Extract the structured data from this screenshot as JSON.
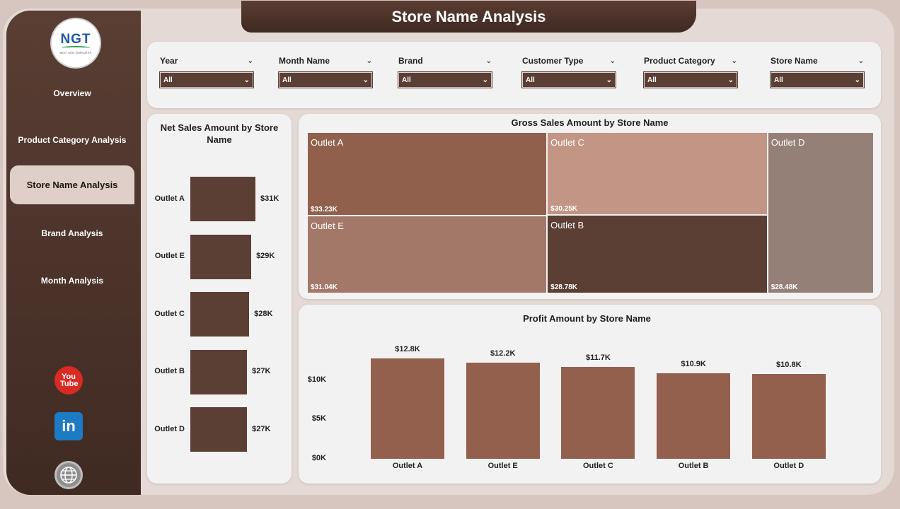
{
  "header": {
    "title": "Store Name Analysis"
  },
  "logo": {
    "text": "NGT",
    "subtext": "NEXT GEN TEMPLATES"
  },
  "sidebar": {
    "items": [
      {
        "label": "Overview",
        "active": false
      },
      {
        "label": "Product Category Analysis",
        "active": false
      },
      {
        "label": "Store Name Analysis",
        "active": true
      },
      {
        "label": "Brand Analysis",
        "active": false
      },
      {
        "label": "Month Analysis",
        "active": false
      }
    ],
    "social": {
      "youtube": "You Tube",
      "linkedin": "in",
      "web_icon": "globe-www-icon"
    }
  },
  "filters": [
    {
      "label": "Year",
      "value": "All"
    },
    {
      "label": "Month Name",
      "value": "All"
    },
    {
      "label": "Brand",
      "value": "All"
    },
    {
      "label": "Customer Type",
      "value": "All"
    },
    {
      "label": "Product Category",
      "value": "All"
    },
    {
      "label": "Store Name",
      "value": "All"
    }
  ],
  "colors": {
    "brand_dark": "#5b3e34",
    "bar_light": "#93604d"
  },
  "chart_data": [
    {
      "type": "bar",
      "orientation": "horizontal",
      "title": "Net Sales Amount by Store Name",
      "categories": [
        "Outlet A",
        "Outlet E",
        "Outlet C",
        "Outlet B",
        "Outlet D"
      ],
      "values": [
        31,
        29,
        28,
        27,
        27
      ],
      "value_labels": [
        "$31K",
        "$29K",
        "$28K",
        "$27K",
        "$27K"
      ],
      "unit": "K"
    },
    {
      "type": "treemap",
      "title": "Gross Sales Amount by Store Name",
      "categories": [
        "Outlet A",
        "Outlet C",
        "Outlet E",
        "Outlet B",
        "Outlet D"
      ],
      "values": [
        33.23,
        30.25,
        31.04,
        28.78,
        28.48
      ],
      "value_labels": [
        "$33.23K",
        "$30.25K",
        "$31.04K",
        "$28.78K",
        "$28.48K"
      ],
      "colors": [
        "#91604c",
        "#c29584",
        "#a47868",
        "#5b3e34",
        "#958078"
      ]
    },
    {
      "type": "bar",
      "title": "Profit Amount by Store Name",
      "categories": [
        "Outlet A",
        "Outlet E",
        "Outlet C",
        "Outlet B",
        "Outlet D"
      ],
      "values": [
        12.8,
        12.2,
        11.7,
        10.9,
        10.8
      ],
      "value_labels": [
        "$12.8K",
        "$12.2K",
        "$11.7K",
        "$10.9K",
        "$10.8K"
      ],
      "yticks": [
        "$0K",
        "$5K",
        "$10K"
      ],
      "ylim": [
        0,
        13.5
      ]
    }
  ]
}
